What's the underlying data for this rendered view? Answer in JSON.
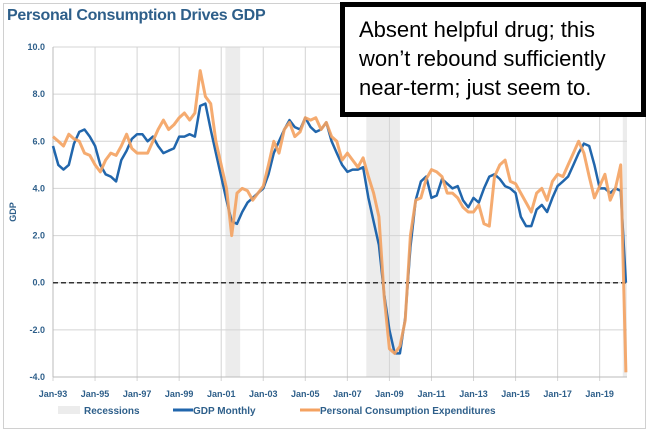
{
  "chart_data": {
    "type": "line",
    "title": "Personal Consumption Drives GDP",
    "ylabel": "GDP",
    "xlabel": "",
    "ylim": [
      -4,
      10
    ],
    "xlim": [
      1993,
      2020.3
    ],
    "yticks": [
      "10.0",
      "8.0",
      "6.0",
      "4.0",
      "2.0",
      "0.0",
      "-2.0",
      "-4.0"
    ],
    "xticks": [
      "Jan-93",
      "Jan-95",
      "Jan-97",
      "Jan-99",
      "Jan-01",
      "Jan-03",
      "Jan-05",
      "Jan-07",
      "Jan-09",
      "Jan-11",
      "Jan-13",
      "Jan-15",
      "Jan-17",
      "Jan-19"
    ],
    "grid": true,
    "legend_position": "bottom",
    "recessions": [
      [
        2001.2,
        2001.9
      ],
      [
        2007.9,
        2009.5
      ],
      [
        2020.1,
        2020.3
      ]
    ],
    "legend": {
      "recessions": "Recessions",
      "gdp": "GDP Monthly",
      "pce": "Personal Consumption Expenditures"
    },
    "series": [
      {
        "name": "GDP Monthly",
        "color": "#2166ac",
        "start": 1993,
        "step": 0.25,
        "values": [
          5.8,
          5.0,
          4.8,
          5.0,
          5.9,
          6.4,
          6.5,
          6.2,
          5.8,
          5.0,
          4.6,
          4.5,
          4.3,
          5.2,
          5.6,
          6.1,
          6.3,
          6.3,
          6.0,
          6.2,
          5.8,
          5.5,
          5.6,
          5.7,
          6.2,
          6.2,
          6.3,
          6.2,
          7.5,
          7.6,
          6.5,
          5.5,
          4.5,
          3.5,
          2.6,
          2.5,
          3.0,
          3.4,
          3.6,
          3.8,
          4.0,
          4.6,
          5.5,
          6.0,
          6.5,
          6.9,
          6.6,
          6.5,
          7.0,
          6.6,
          6.4,
          6.5,
          6.8,
          6.0,
          5.5,
          5.0,
          4.7,
          4.8,
          4.8,
          4.9,
          3.6,
          2.6,
          1.6,
          -0.5,
          -2.0,
          -3.0,
          -3.0,
          -1.5,
          1.5,
          3.5,
          4.3,
          4.5,
          3.6,
          3.7,
          4.4,
          4.2,
          4.0,
          4.1,
          3.5,
          3.2,
          3.6,
          3.4,
          4.0,
          4.5,
          4.6,
          4.4,
          4.1,
          4.0,
          3.8,
          2.8,
          2.4,
          2.4,
          3.1,
          3.3,
          3.0,
          3.6,
          4.1,
          4.3,
          4.5,
          5.0,
          5.5,
          5.9,
          5.8,
          5.0,
          4.0,
          4.0,
          3.8,
          4.0,
          3.9,
          0.0
        ]
      },
      {
        "name": "Personal Consumption Expenditures",
        "color": "#f4a261",
        "start": 1993,
        "step": 0.25,
        "values": [
          6.2,
          6.0,
          5.8,
          6.3,
          6.1,
          6.0,
          5.5,
          5.4,
          5.0,
          4.7,
          5.2,
          5.5,
          5.4,
          5.8,
          6.3,
          5.7,
          5.5,
          5.5,
          5.5,
          6.0,
          6.5,
          6.9,
          6.5,
          6.7,
          7.0,
          7.2,
          6.9,
          7.2,
          9.0,
          7.9,
          7.6,
          6.0,
          5.0,
          4.0,
          2.0,
          3.8,
          4.0,
          3.9,
          3.5,
          3.8,
          4.1,
          5.0,
          6.0,
          5.5,
          6.5,
          6.8,
          6.2,
          6.4,
          7.0,
          6.9,
          7.0,
          6.5,
          6.8,
          6.2,
          6.0,
          5.2,
          5.5,
          5.2,
          4.9,
          5.3,
          4.5,
          3.8,
          2.8,
          -0.6,
          -2.8,
          -3.0,
          -2.7,
          -1.6,
          2.0,
          3.5,
          3.6,
          4.4,
          4.8,
          4.7,
          4.5,
          3.8,
          3.8,
          3.6,
          3.2,
          3.0,
          3.0,
          3.3,
          2.5,
          2.4,
          4.5,
          5.0,
          5.2,
          4.3,
          4.2,
          3.8,
          3.4,
          3.0,
          3.8,
          4.0,
          3.5,
          4.3,
          4.6,
          4.5,
          5.0,
          5.5,
          6.0,
          5.5,
          4.5,
          3.6,
          4.1,
          4.6,
          3.5,
          4.0,
          5.0,
          -3.8
        ]
      }
    ]
  },
  "annotation": {
    "lines": [
      "Absent helpful drug; this",
      "won’t rebound sufficiently",
      "near-term; just seem to."
    ]
  }
}
